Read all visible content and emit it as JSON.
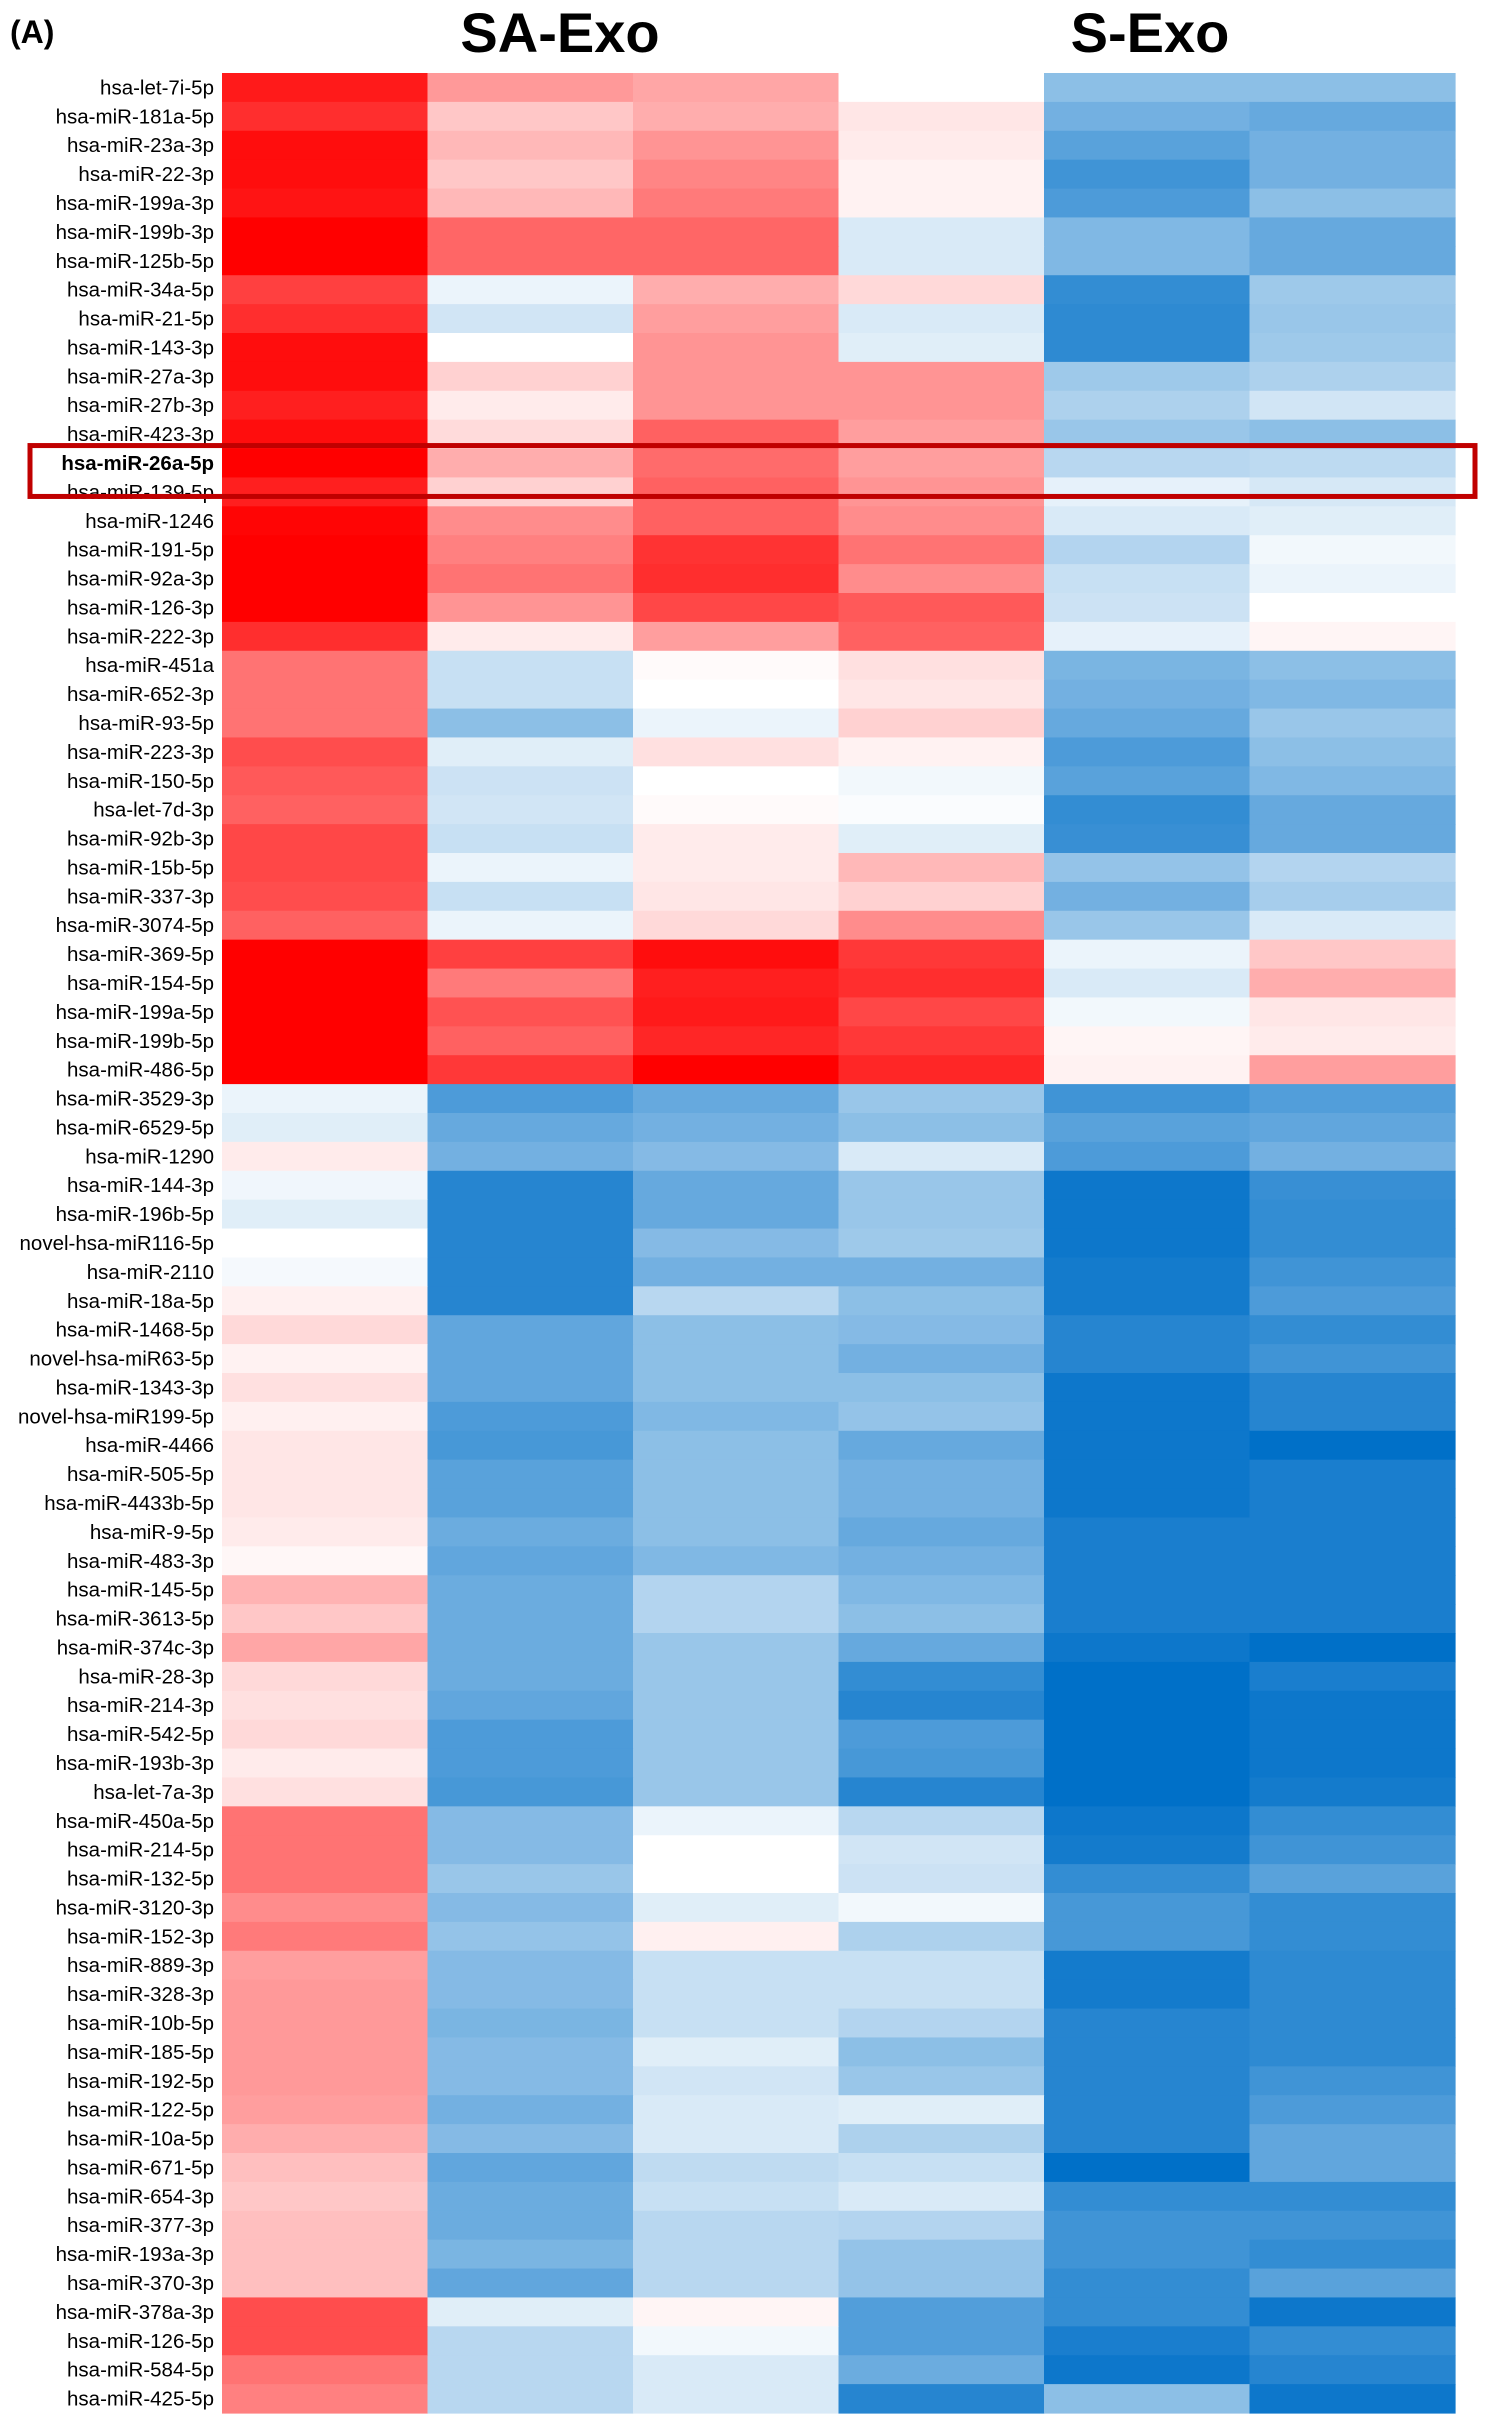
{
  "panel_label": "(A)",
  "chart_data": {
    "type": "heatmap",
    "groups": [
      "SA-Exo",
      "S-Exo"
    ],
    "highlighted_row": "hsa-miR-26a-5p",
    "color_scale": {
      "low": "#0070c8",
      "mid": "#ffffff",
      "high": "#ff0000"
    },
    "rows": [
      "hsa-let-7i-5p",
      "hsa-miR-181a-5p",
      "hsa-miR-23a-3p",
      "hsa-miR-22-3p",
      "hsa-miR-199a-3p",
      "hsa-miR-199b-3p",
      "hsa-miR-125b-5p",
      "hsa-miR-34a-5p",
      "hsa-miR-21-5p",
      "hsa-miR-143-3p",
      "hsa-miR-27a-3p",
      "hsa-miR-27b-3p",
      "hsa-miR-423-3p",
      "hsa-miR-26a-5p",
      "hsa-miR-139-5p",
      "hsa-miR-1246",
      "hsa-miR-191-5p",
      "hsa-miR-92a-3p",
      "hsa-miR-126-3p",
      "hsa-miR-222-3p",
      "hsa-miR-451a",
      "hsa-miR-652-3p",
      "hsa-miR-93-5p",
      "hsa-miR-223-3p",
      "hsa-miR-150-5p",
      "hsa-let-7d-3p",
      "hsa-miR-92b-3p",
      "hsa-miR-15b-5p",
      "hsa-miR-337-3p",
      "hsa-miR-3074-5p",
      "hsa-miR-369-5p",
      "hsa-miR-154-5p",
      "hsa-miR-199a-5p",
      "hsa-miR-199b-5p",
      "hsa-miR-486-5p",
      "hsa-miR-3529-3p",
      "hsa-miR-6529-5p",
      "hsa-miR-1290",
      "hsa-miR-144-3p",
      "hsa-miR-196b-5p",
      "novel-hsa-miR116-5p",
      "hsa-miR-2110",
      "hsa-miR-18a-5p",
      "hsa-miR-1468-5p",
      "novel-hsa-miR63-5p",
      "hsa-miR-1343-3p",
      "novel-hsa-miR199-5p",
      "hsa-miR-4466",
      "hsa-miR-505-5p",
      "hsa-miR-4433b-5p",
      "hsa-miR-9-5p",
      "hsa-miR-483-3p",
      "hsa-miR-145-5p",
      "hsa-miR-3613-5p",
      "hsa-miR-374c-3p",
      "hsa-miR-28-3p",
      "hsa-miR-214-3p",
      "hsa-miR-542-5p",
      "hsa-miR-193b-3p",
      "hsa-let-7a-3p",
      "hsa-miR-450a-5p",
      "hsa-miR-214-5p",
      "hsa-miR-132-5p",
      "hsa-miR-3120-3p",
      "hsa-miR-152-3p",
      "hsa-miR-889-3p",
      "hsa-miR-328-3p",
      "hsa-miR-10b-5p",
      "hsa-miR-185-5p",
      "hsa-miR-192-5p",
      "hsa-miR-122-5p",
      "hsa-miR-10a-5p",
      "hsa-miR-671-5p",
      "hsa-miR-654-3p",
      "hsa-miR-377-3p",
      "hsa-miR-193a-3p",
      "hsa-miR-370-3p",
      "hsa-miR-378a-3p",
      "hsa-miR-126-5p",
      "hsa-miR-584-5p",
      "hsa-miR-425-5p"
    ],
    "values": [
      [
        0.9,
        0.4,
        0.35,
        0.0,
        -0.45,
        -0.45
      ],
      [
        0.82,
        0.22,
        0.32,
        0.1,
        -0.55,
        -0.6
      ],
      [
        0.95,
        0.28,
        0.42,
        0.08,
        -0.65,
        -0.55
      ],
      [
        0.95,
        0.22,
        0.48,
        0.05,
        -0.75,
        -0.55
      ],
      [
        0.92,
        0.28,
        0.52,
        0.05,
        -0.7,
        -0.45
      ],
      [
        1.0,
        0.6,
        0.6,
        -0.15,
        -0.5,
        -0.6
      ],
      [
        1.0,
        0.6,
        0.6,
        -0.15,
        -0.5,
        -0.6
      ],
      [
        0.75,
        -0.08,
        0.32,
        0.15,
        -0.8,
        -0.38
      ],
      [
        0.82,
        -0.18,
        0.38,
        -0.15,
        -0.82,
        -0.4
      ],
      [
        0.95,
        0.0,
        0.42,
        -0.12,
        -0.82,
        -0.38
      ],
      [
        0.95,
        0.18,
        0.42,
        0.42,
        -0.38,
        -0.32
      ],
      [
        0.88,
        0.08,
        0.42,
        0.42,
        -0.32,
        -0.18
      ],
      [
        0.95,
        0.14,
        0.62,
        0.38,
        -0.4,
        -0.45
      ],
      [
        1.0,
        0.32,
        0.58,
        0.38,
        -0.28,
        -0.26
      ],
      [
        0.88,
        0.18,
        0.62,
        0.42,
        -0.1,
        -0.16
      ],
      [
        0.98,
        0.45,
        0.62,
        0.45,
        -0.15,
        -0.12
      ],
      [
        1.0,
        0.5,
        0.8,
        0.55,
        -0.3,
        -0.05
      ],
      [
        1.0,
        0.55,
        0.82,
        0.45,
        -0.22,
        -0.08
      ],
      [
        1.0,
        0.42,
        0.72,
        0.65,
        -0.2,
        0.0
      ],
      [
        0.82,
        0.08,
        0.38,
        0.62,
        -0.1,
        0.04
      ],
      [
        0.55,
        -0.22,
        0.02,
        0.12,
        -0.52,
        -0.45
      ],
      [
        0.55,
        -0.22,
        0.0,
        0.1,
        -0.55,
        -0.5
      ],
      [
        0.55,
        -0.45,
        -0.08,
        0.18,
        -0.6,
        -0.4
      ],
      [
        0.7,
        -0.12,
        0.12,
        0.05,
        -0.7,
        -0.45
      ],
      [
        0.65,
        -0.2,
        0.0,
        -0.05,
        -0.65,
        -0.5
      ],
      [
        0.62,
        -0.18,
        0.02,
        -0.02,
        -0.8,
        -0.6
      ],
      [
        0.72,
        -0.22,
        0.08,
        -0.12,
        -0.78,
        -0.6
      ],
      [
        0.72,
        -0.08,
        0.08,
        0.28,
        -0.42,
        -0.3
      ],
      [
        0.7,
        -0.22,
        0.1,
        0.18,
        -0.55,
        -0.35
      ],
      [
        0.62,
        -0.08,
        0.15,
        0.45,
        -0.4,
        -0.15
      ],
      [
        1.0,
        0.75,
        0.95,
        0.78,
        -0.08,
        0.22
      ],
      [
        1.0,
        0.52,
        0.88,
        0.82,
        -0.15,
        0.32
      ],
      [
        1.0,
        0.68,
        0.9,
        0.72,
        -0.05,
        0.1
      ],
      [
        1.0,
        0.62,
        0.85,
        0.78,
        0.04,
        0.08
      ],
      [
        1.0,
        0.78,
        1.0,
        0.85,
        0.05,
        0.38
      ],
      [
        -0.08,
        -0.7,
        -0.6,
        -0.4,
        -0.75,
        -0.68
      ],
      [
        -0.12,
        -0.6,
        -0.55,
        -0.45,
        -0.65,
        -0.62
      ],
      [
        0.08,
        -0.55,
        -0.48,
        -0.15,
        -0.7,
        -0.55
      ],
      [
        -0.06,
        -0.85,
        -0.6,
        -0.4,
        -0.95,
        -0.78
      ],
      [
        -0.12,
        -0.85,
        -0.6,
        -0.4,
        -0.95,
        -0.8
      ],
      [
        0.0,
        -0.85,
        -0.48,
        -0.38,
        -0.95,
        -0.8
      ],
      [
        -0.04,
        -0.85,
        -0.55,
        -0.55,
        -0.92,
        -0.75
      ],
      [
        0.06,
        -0.85,
        -0.28,
        -0.45,
        -0.92,
        -0.7
      ],
      [
        0.15,
        -0.62,
        -0.45,
        -0.48,
        -0.85,
        -0.8
      ],
      [
        0.05,
        -0.62,
        -0.45,
        -0.55,
        -0.85,
        -0.75
      ],
      [
        0.12,
        -0.62,
        -0.45,
        -0.45,
        -0.95,
        -0.85
      ],
      [
        0.06,
        -0.7,
        -0.5,
        -0.42,
        -0.95,
        -0.85
      ],
      [
        0.1,
        -0.72,
        -0.45,
        -0.6,
        -0.95,
        -1.0
      ],
      [
        0.1,
        -0.65,
        -0.45,
        -0.55,
        -0.95,
        -0.9
      ],
      [
        0.1,
        -0.65,
        -0.45,
        -0.55,
        -0.95,
        -0.9
      ],
      [
        0.08,
        -0.58,
        -0.45,
        -0.6,
        -0.9,
        -0.9
      ],
      [
        0.03,
        -0.62,
        -0.5,
        -0.55,
        -0.9,
        -0.9
      ],
      [
        0.3,
        -0.58,
        -0.3,
        -0.5,
        -0.9,
        -0.9
      ],
      [
        0.22,
        -0.58,
        -0.3,
        -0.45,
        -0.9,
        -0.9
      ],
      [
        0.35,
        -0.58,
        -0.4,
        -0.6,
        -0.95,
        -1.0
      ],
      [
        0.15,
        -0.58,
        -0.4,
        -0.8,
        -1.0,
        -0.9
      ],
      [
        0.12,
        -0.62,
        -0.4,
        -0.85,
        -1.0,
        -0.95
      ],
      [
        0.15,
        -0.7,
        -0.4,
        -0.7,
        -1.0,
        -0.95
      ],
      [
        0.08,
        -0.7,
        -0.4,
        -0.72,
        -1.0,
        -0.95
      ],
      [
        0.12,
        -0.72,
        -0.4,
        -0.85,
        -1.0,
        -0.92
      ],
      [
        0.55,
        -0.48,
        -0.08,
        -0.28,
        -0.95,
        -0.8
      ],
      [
        0.55,
        -0.48,
        0.0,
        -0.18,
        -0.92,
        -0.75
      ],
      [
        0.55,
        -0.4,
        0.0,
        -0.2,
        -0.8,
        -0.65
      ],
      [
        0.45,
        -0.48,
        -0.12,
        -0.05,
        -0.72,
        -0.8
      ],
      [
        0.52,
        -0.42,
        0.06,
        -0.32,
        -0.72,
        -0.8
      ],
      [
        0.38,
        -0.48,
        -0.22,
        -0.22,
        -0.92,
        -0.82
      ],
      [
        0.4,
        -0.48,
        -0.22,
        -0.22,
        -0.92,
        -0.82
      ],
      [
        0.4,
        -0.52,
        -0.22,
        -0.3,
        -0.85,
        -0.82
      ],
      [
        0.4,
        -0.48,
        -0.12,
        -0.45,
        -0.85,
        -0.82
      ],
      [
        0.4,
        -0.48,
        -0.18,
        -0.4,
        -0.85,
        -0.75
      ],
      [
        0.38,
        -0.55,
        -0.15,
        -0.12,
        -0.85,
        -0.7
      ],
      [
        0.32,
        -0.48,
        -0.15,
        -0.32,
        -0.85,
        -0.62
      ],
      [
        0.25,
        -0.62,
        -0.25,
        -0.22,
        -1.0,
        -0.62
      ],
      [
        0.22,
        -0.58,
        -0.22,
        -0.15,
        -0.8,
        -0.8
      ],
      [
        0.25,
        -0.58,
        -0.28,
        -0.3,
        -0.75,
        -0.75
      ],
      [
        0.25,
        -0.52,
        -0.28,
        -0.42,
        -0.75,
        -0.8
      ],
      [
        0.25,
        -0.62,
        -0.28,
        -0.42,
        -0.8,
        -0.65
      ],
      [
        0.7,
        -0.12,
        0.04,
        -0.68,
        -0.8,
        -0.95
      ],
      [
        0.7,
        -0.28,
        -0.05,
        -0.68,
        -0.9,
        -0.8
      ],
      [
        0.55,
        -0.28,
        -0.15,
        -0.58,
        -0.95,
        -0.85
      ],
      [
        0.5,
        -0.28,
        -0.15,
        -0.85,
        -0.45,
        -0.95
      ]
    ]
  }
}
